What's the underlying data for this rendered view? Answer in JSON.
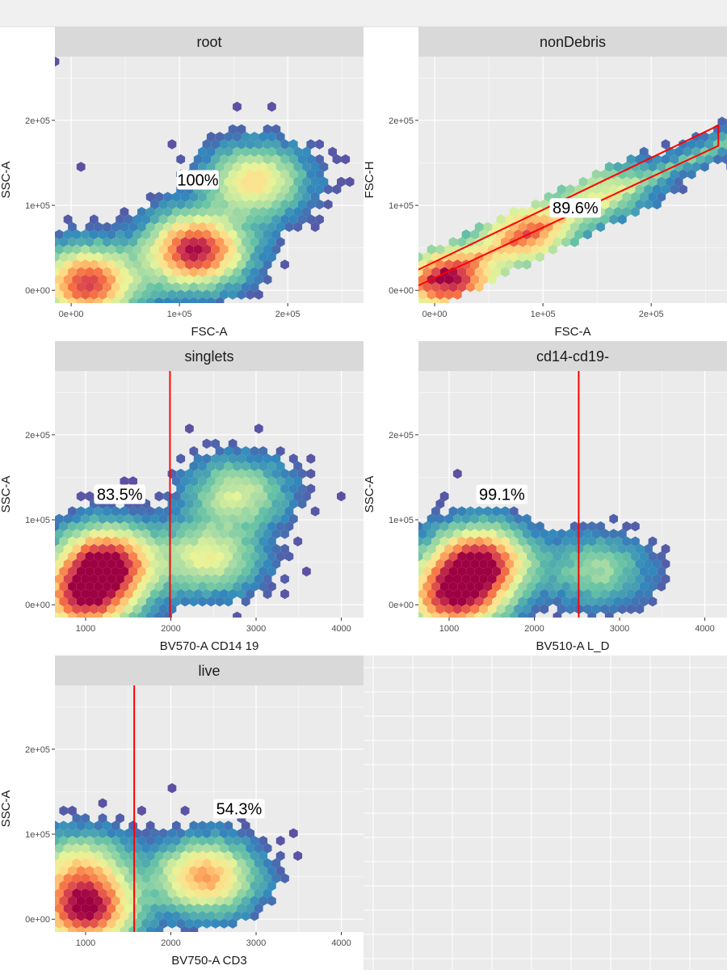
{
  "chart_data": [
    {
      "type": "hexbin",
      "panel": "root",
      "xlabel": "FSC-A",
      "ylabel": "SSC-A",
      "xlim": [
        -15000,
        270000
      ],
      "ylim": [
        -15000,
        275000
      ],
      "xticks": [
        0,
        100000,
        200000
      ],
      "xtick_labels": [
        "0e+00",
        "1e+05",
        "2e+05"
      ],
      "yticks": [
        0,
        100000,
        200000
      ],
      "ytick_labels": [
        "0e+00",
        "1e+05",
        "2e+05"
      ],
      "gate": null,
      "gate_percent": "100%",
      "gate_label_at": [
        117000,
        130000
      ],
      "density_peaks": [
        {
          "x": 115000,
          "y": 47000,
          "w": 1.0
        },
        {
          "x": 170000,
          "y": 128000,
          "w": 0.55
        },
        {
          "x": 15000,
          "y": 8000,
          "w": 0.9
        }
      ]
    },
    {
      "type": "hexbin",
      "panel": "nonDebris",
      "xlabel": "FSC-A",
      "ylabel": "FSC-H",
      "xlim": [
        -15000,
        270000
      ],
      "ylim": [
        -15000,
        275000
      ],
      "xticks": [
        0,
        100000,
        200000
      ],
      "xtick_labels": [
        "0e+00",
        "1e+05",
        "2e+05"
      ],
      "yticks": [
        0,
        100000,
        200000
      ],
      "ytick_labels": [
        "0e+00",
        "1e+05",
        "2e+05"
      ],
      "gate": {
        "type": "polygon",
        "points": [
          [
            -50000,
            -15000
          ],
          [
            262000,
            170000
          ],
          [
            262000,
            194000
          ],
          [
            -50000,
            3000
          ]
        ]
      },
      "gate_percent": "89.6%",
      "gate_label_at": [
        130000,
        97000
      ],
      "density_peaks": [
        {
          "x": 15000,
          "y": 10000,
          "w": 1.0
        },
        {
          "x": 85000,
          "y": 68000,
          "w": 0.7
        },
        {
          "x": 150000,
          "y": 118000,
          "w": 0.35
        }
      ]
    },
    {
      "type": "hexbin",
      "panel": "singlets",
      "xlabel": "BV570-A CD14 19",
      "ylabel": "SSC-A",
      "xlim": [
        640,
        4260
      ],
      "ylim": [
        -15000,
        275000
      ],
      "xticks": [
        1000,
        2000,
        3000,
        4000
      ],
      "xtick_labels": [
        "1000",
        "2000",
        "3000",
        "4000"
      ],
      "yticks": [
        0,
        100000,
        200000
      ],
      "ytick_labels": [
        "0e+00",
        "1e+05",
        "2e+05"
      ],
      "gate": {
        "type": "vline",
        "x": 1990
      },
      "gate_percent": "83.5%",
      "gate_label_at": [
        1400,
        130000
      ],
      "density_peaks": [
        {
          "x": 1250,
          "y": 50000,
          "w": 1.0
        },
        {
          "x": 1000,
          "y": 8000,
          "w": 0.9
        },
        {
          "x": 2450,
          "y": 55000,
          "w": 0.45
        },
        {
          "x": 2780,
          "y": 130000,
          "w": 0.4
        }
      ]
    },
    {
      "type": "hexbin",
      "panel": "cd14-cd19-",
      "xlabel": "BV510-A L_D",
      "ylabel": "SSC-A",
      "xlim": [
        640,
        4260
      ],
      "ylim": [
        -15000,
        275000
      ],
      "xticks": [
        1000,
        2000,
        3000,
        4000
      ],
      "xtick_labels": [
        "1000",
        "2000",
        "3000",
        "4000"
      ],
      "yticks": [
        0,
        100000,
        200000
      ],
      "ytick_labels": [
        "0e+00",
        "1e+05",
        "2e+05"
      ],
      "gate": {
        "type": "vline",
        "x": 2520
      },
      "gate_percent": "99.1%",
      "gate_label_at": [
        1620,
        130000
      ],
      "density_peaks": [
        {
          "x": 1350,
          "y": 50000,
          "w": 1.0
        },
        {
          "x": 1050,
          "y": 8000,
          "w": 0.9
        },
        {
          "x": 2750,
          "y": 40000,
          "w": 0.3
        }
      ]
    },
    {
      "type": "hexbin",
      "panel": "live",
      "xlabel": "BV750-A CD3",
      "ylabel": "SSC-A",
      "xlim": [
        640,
        4260
      ],
      "ylim": [
        -15000,
        275000
      ],
      "xticks": [
        1000,
        2000,
        3000,
        4000
      ],
      "xtick_labels": [
        "1000",
        "2000",
        "3000",
        "4000"
      ],
      "yticks": [
        0,
        100000,
        200000
      ],
      "ytick_labels": [
        "0e+00",
        "1e+05",
        "2e+05"
      ],
      "gate": {
        "type": "vline",
        "x": 1570
      },
      "gate_percent": "54.3%",
      "gate_label_at": [
        2800,
        130000
      ],
      "density_peaks": [
        {
          "x": 1000,
          "y": 10000,
          "w": 1.0
        },
        {
          "x": 950,
          "y": 60000,
          "w": 0.5
        },
        {
          "x": 2400,
          "y": 50000,
          "w": 0.7
        }
      ]
    }
  ],
  "colors": {
    "panel_bg": "#ebebeb",
    "grid": "#ffffff",
    "strip_bg": "#d9d9d9",
    "gate": "#ff0000",
    "palette": [
      "#5e4fa2",
      "#3288bd",
      "#66c2a5",
      "#abdda4",
      "#e6f598",
      "#fee08b",
      "#fdae61",
      "#f46d43",
      "#d53e4f",
      "#9e0142"
    ]
  }
}
